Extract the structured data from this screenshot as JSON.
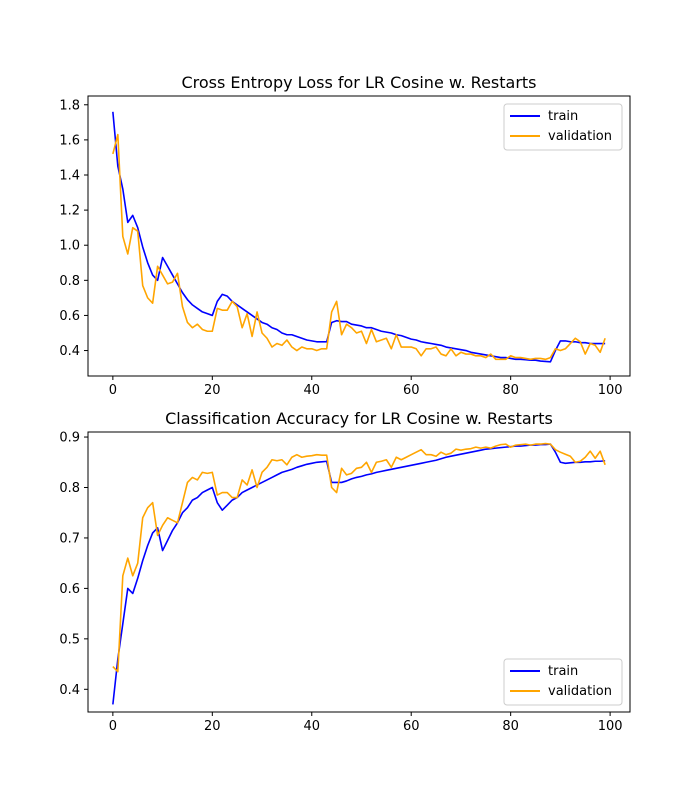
{
  "chart_data": [
    {
      "type": "line",
      "title": "Cross Entropy Loss for LR Cosine w. Restarts",
      "xlim": [
        -5,
        104
      ],
      "ylim": [
        0.255,
        1.85
      ],
      "xticks": [
        0,
        20,
        40,
        60,
        80,
        100
      ],
      "yticks": [
        0.4,
        0.6,
        0.8,
        1.0,
        1.2,
        1.4,
        1.6,
        1.8
      ],
      "ytick_labels": [
        "0.4",
        "0.6",
        "0.8",
        "1.0",
        "1.2",
        "1.4",
        "1.6",
        "1.8"
      ],
      "legend_position": "upper right",
      "series": [
        {
          "name": "train",
          "color": "#0000ff",
          "values": [
            1.76,
            1.45,
            1.32,
            1.13,
            1.17,
            1.1,
            0.99,
            0.9,
            0.83,
            0.8,
            0.93,
            0.88,
            0.83,
            0.78,
            0.73,
            0.69,
            0.66,
            0.64,
            0.62,
            0.61,
            0.6,
            0.68,
            0.72,
            0.71,
            0.68,
            0.66,
            0.64,
            0.62,
            0.6,
            0.58,
            0.56,
            0.55,
            0.53,
            0.52,
            0.5,
            0.49,
            0.49,
            0.48,
            0.47,
            0.46,
            0.455,
            0.45,
            0.45,
            0.45,
            0.56,
            0.57,
            0.565,
            0.565,
            0.55,
            0.545,
            0.54,
            0.53,
            0.53,
            0.52,
            0.51,
            0.505,
            0.5,
            0.49,
            0.485,
            0.475,
            0.465,
            0.46,
            0.45,
            0.445,
            0.44,
            0.435,
            0.43,
            0.42,
            0.415,
            0.41,
            0.405,
            0.4,
            0.39,
            0.385,
            0.38,
            0.375,
            0.37,
            0.365,
            0.36,
            0.36,
            0.355,
            0.35,
            0.35,
            0.348,
            0.345,
            0.345,
            0.34,
            0.338,
            0.336,
            0.4,
            0.455,
            0.455,
            0.45,
            0.45,
            0.445,
            0.445,
            0.44,
            0.44,
            0.44,
            0.44
          ]
        },
        {
          "name": "validation",
          "color": "#ffa500",
          "values": [
            1.52,
            1.63,
            1.05,
            0.95,
            1.1,
            1.08,
            0.77,
            0.7,
            0.67,
            0.88,
            0.83,
            0.78,
            0.79,
            0.84,
            0.65,
            0.56,
            0.53,
            0.55,
            0.52,
            0.51,
            0.51,
            0.64,
            0.63,
            0.63,
            0.68,
            0.65,
            0.53,
            0.61,
            0.48,
            0.62,
            0.5,
            0.47,
            0.42,
            0.44,
            0.43,
            0.46,
            0.42,
            0.4,
            0.42,
            0.41,
            0.41,
            0.4,
            0.41,
            0.41,
            0.62,
            0.68,
            0.49,
            0.55,
            0.53,
            0.5,
            0.51,
            0.44,
            0.52,
            0.45,
            0.46,
            0.47,
            0.41,
            0.49,
            0.42,
            0.42,
            0.42,
            0.41,
            0.37,
            0.41,
            0.41,
            0.42,
            0.38,
            0.37,
            0.41,
            0.37,
            0.39,
            0.38,
            0.38,
            0.37,
            0.37,
            0.36,
            0.38,
            0.35,
            0.35,
            0.35,
            0.37,
            0.36,
            0.36,
            0.355,
            0.35,
            0.355,
            0.355,
            0.35,
            0.36,
            0.41,
            0.4,
            0.41,
            0.44,
            0.47,
            0.45,
            0.38,
            0.44,
            0.43,
            0.39,
            0.47
          ]
        }
      ]
    },
    {
      "type": "line",
      "title": "Classification Accuracy for LR Cosine w. Restarts",
      "xlim": [
        -5,
        104
      ],
      "ylim": [
        0.355,
        0.91
      ],
      "xticks": [
        0,
        20,
        40,
        60,
        80,
        100
      ],
      "yticks": [
        0.4,
        0.5,
        0.6,
        0.7,
        0.8,
        0.9
      ],
      "ytick_labels": [
        "0.4",
        "0.5",
        "0.6",
        "0.7",
        "0.8",
        "0.9"
      ],
      "legend_position": "lower right",
      "series": [
        {
          "name": "train",
          "color": "#0000ff",
          "values": [
            0.37,
            0.46,
            0.53,
            0.6,
            0.59,
            0.62,
            0.655,
            0.685,
            0.71,
            0.72,
            0.675,
            0.695,
            0.715,
            0.73,
            0.75,
            0.76,
            0.775,
            0.78,
            0.79,
            0.795,
            0.8,
            0.77,
            0.755,
            0.765,
            0.775,
            0.78,
            0.79,
            0.795,
            0.8,
            0.805,
            0.81,
            0.815,
            0.82,
            0.825,
            0.83,
            0.833,
            0.836,
            0.84,
            0.843,
            0.846,
            0.848,
            0.85,
            0.851,
            0.852,
            0.81,
            0.81,
            0.81,
            0.813,
            0.817,
            0.82,
            0.822,
            0.825,
            0.827,
            0.83,
            0.832,
            0.834,
            0.836,
            0.838,
            0.84,
            0.842,
            0.844,
            0.846,
            0.848,
            0.85,
            0.852,
            0.854,
            0.857,
            0.86,
            0.862,
            0.864,
            0.866,
            0.868,
            0.87,
            0.872,
            0.874,
            0.876,
            0.877,
            0.878,
            0.879,
            0.88,
            0.881,
            0.882,
            0.882,
            0.883,
            0.884,
            0.884,
            0.885,
            0.885,
            0.886,
            0.87,
            0.85,
            0.848,
            0.849,
            0.85,
            0.85,
            0.851,
            0.851,
            0.852,
            0.852,
            0.853
          ]
        },
        {
          "name": "validation",
          "color": "#ffa500",
          "values": [
            0.445,
            0.435,
            0.625,
            0.66,
            0.625,
            0.65,
            0.74,
            0.76,
            0.77,
            0.705,
            0.725,
            0.74,
            0.735,
            0.73,
            0.77,
            0.81,
            0.82,
            0.815,
            0.83,
            0.828,
            0.83,
            0.785,
            0.79,
            0.79,
            0.78,
            0.78,
            0.815,
            0.805,
            0.835,
            0.8,
            0.83,
            0.84,
            0.855,
            0.853,
            0.855,
            0.845,
            0.86,
            0.865,
            0.86,
            0.862,
            0.863,
            0.865,
            0.864,
            0.864,
            0.8,
            0.79,
            0.838,
            0.825,
            0.828,
            0.838,
            0.84,
            0.85,
            0.83,
            0.85,
            0.852,
            0.855,
            0.84,
            0.86,
            0.855,
            0.86,
            0.865,
            0.87,
            0.875,
            0.865,
            0.865,
            0.862,
            0.87,
            0.865,
            0.868,
            0.876,
            0.874,
            0.876,
            0.877,
            0.88,
            0.878,
            0.88,
            0.878,
            0.882,
            0.885,
            0.886,
            0.88,
            0.884,
            0.885,
            0.886,
            0.884,
            0.886,
            0.886,
            0.887,
            0.886,
            0.875,
            0.87,
            0.866,
            0.862,
            0.85,
            0.852,
            0.86,
            0.872,
            0.858,
            0.872,
            0.845
          ]
        }
      ]
    }
  ]
}
